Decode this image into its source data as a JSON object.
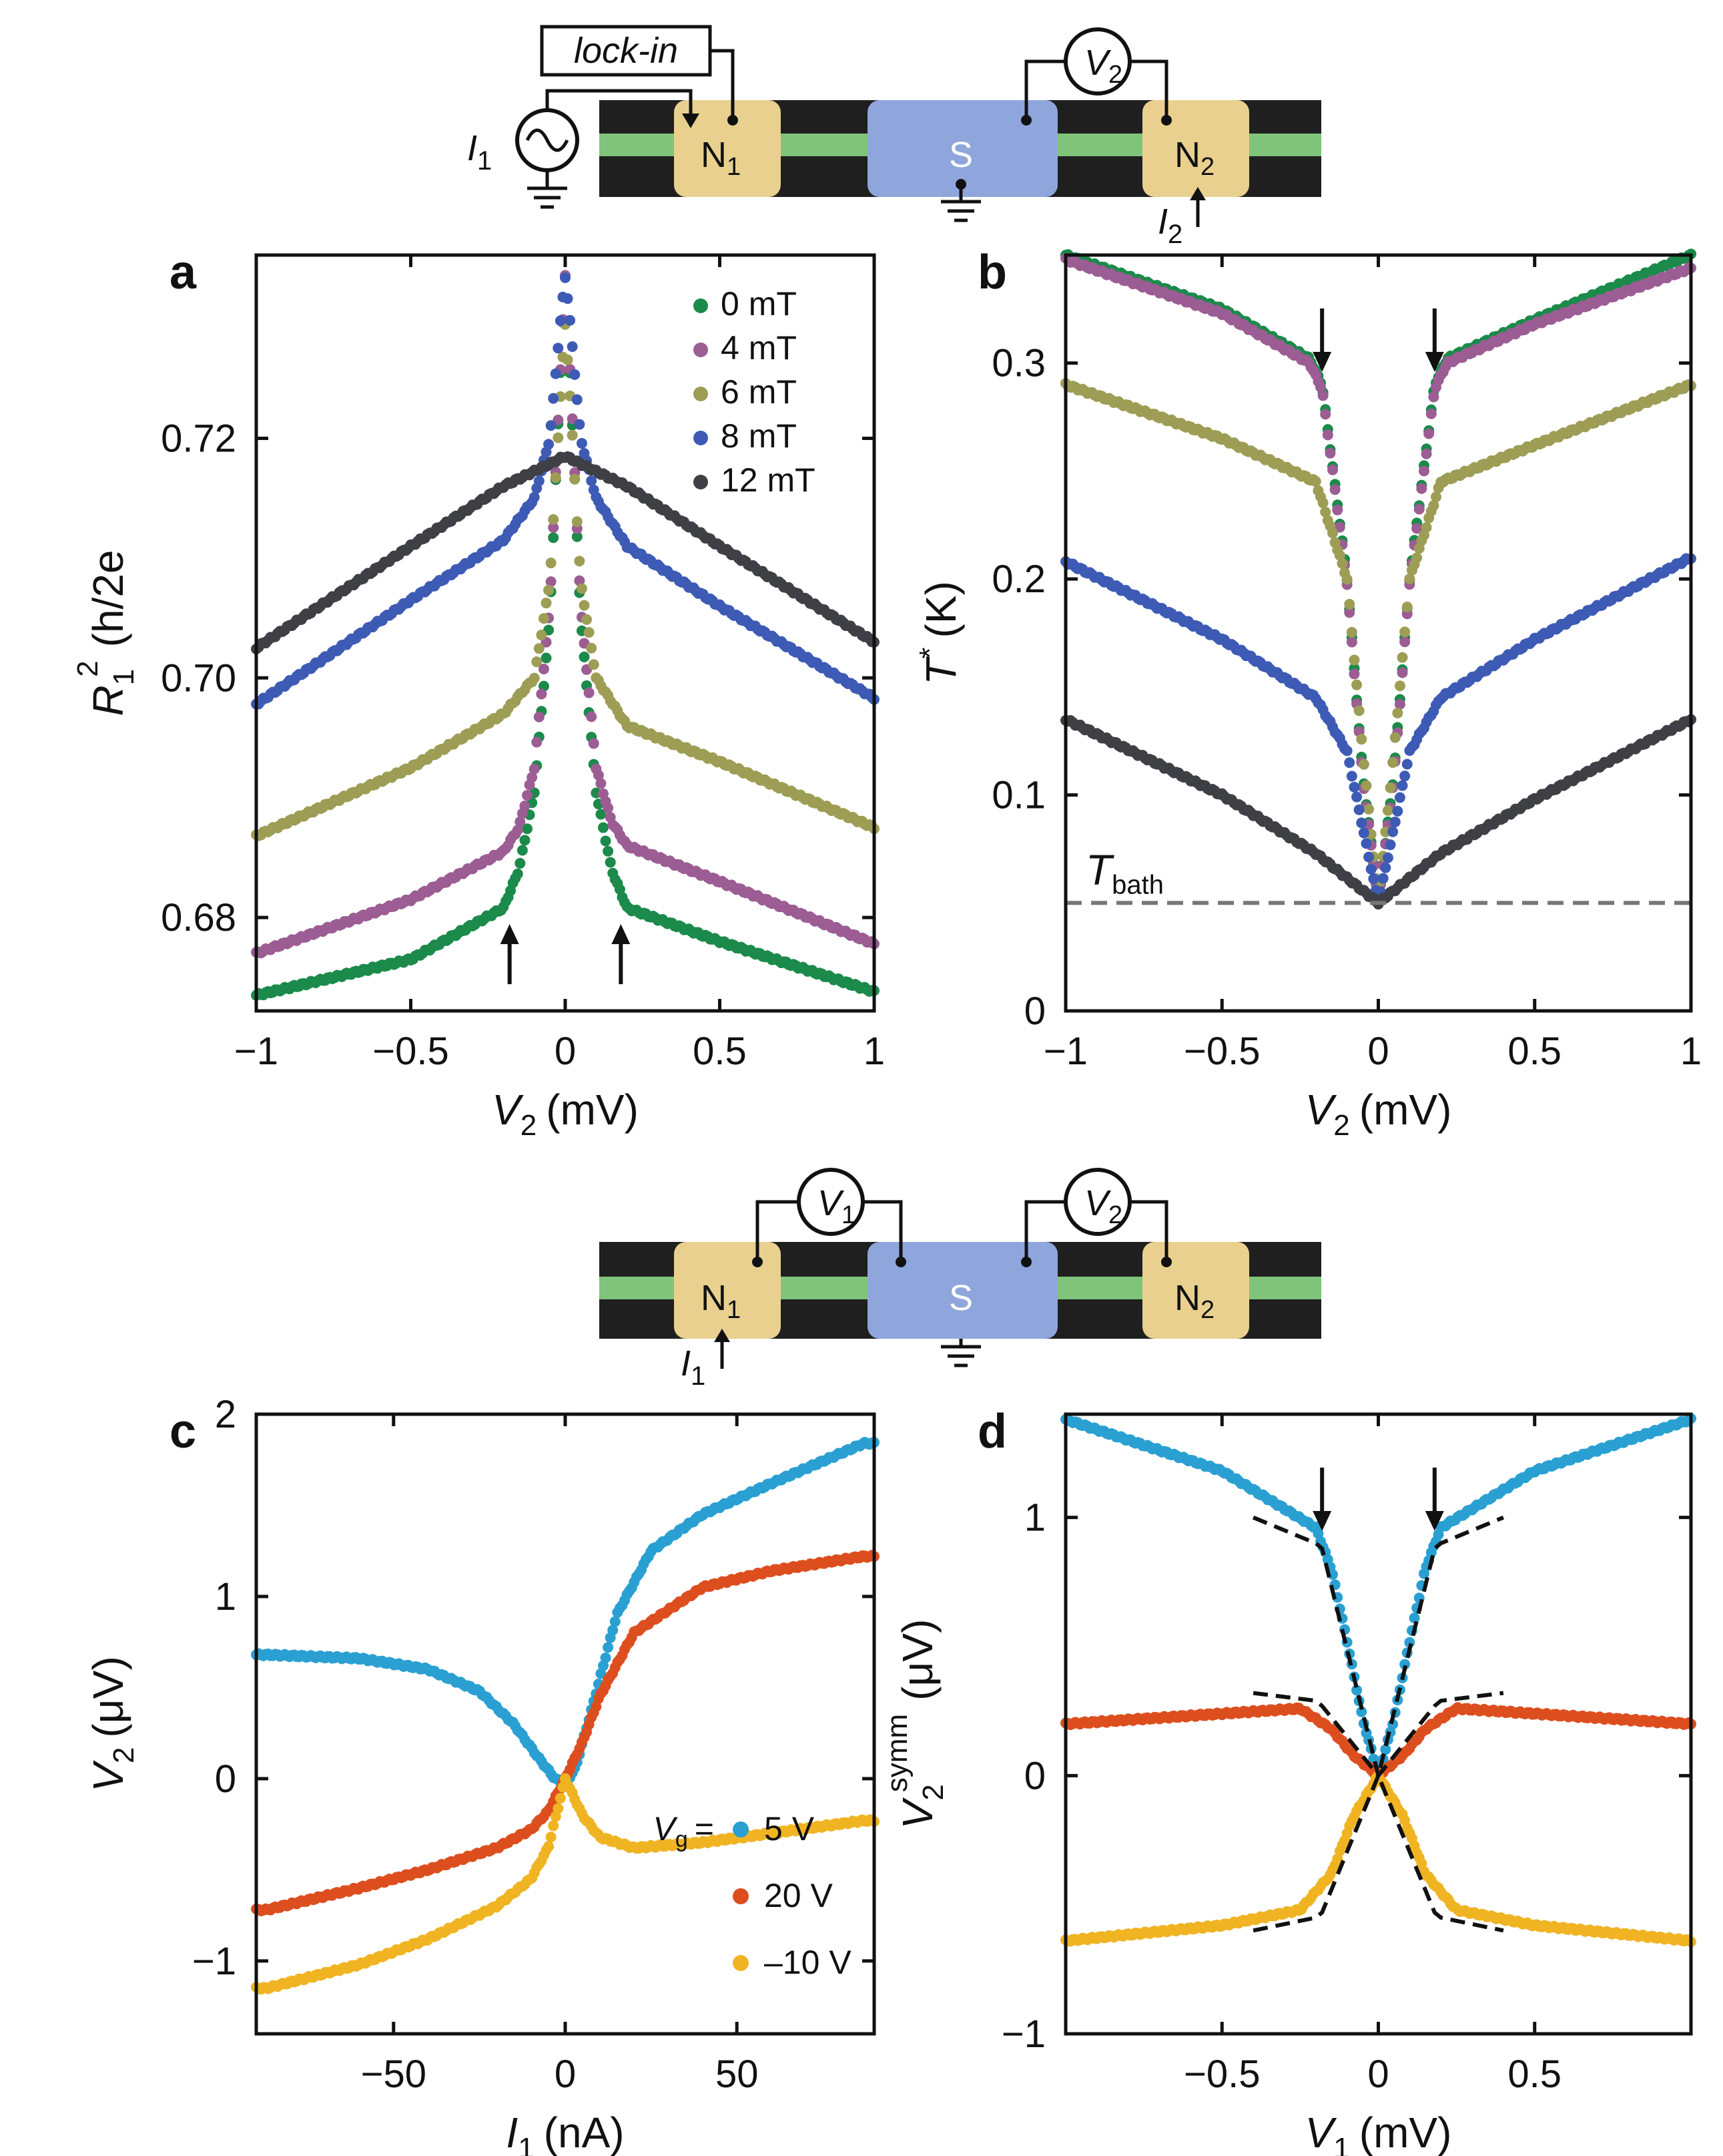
{
  "colors": {
    "green": "#1b8a4a",
    "purple": "#9b5d93",
    "olive": "#9d9d55",
    "blue": "#3d5bb5",
    "gray": "#3f3f46",
    "cyan": "#2aa0d2",
    "orange": "#dd4e1f",
    "yellow": "#f0b423",
    "lead_green": "#7fc47a",
    "contact_gold": "#e9d08f",
    "sc_blue": "#8fa6dc",
    "dark": "#2a2a2a"
  },
  "devices": {
    "top": {
      "instrument": "lock-in",
      "source_I": "I",
      "source_I_sub": "1",
      "meter_V": "V",
      "meter_V_sub": "2",
      "N1": "N",
      "N1_sub": "1",
      "S": "S",
      "N2": "N",
      "N2_sub": "2",
      "I2": "I",
      "I2_sub": "2"
    },
    "bottom": {
      "meter1_V": "V",
      "meter1_V_sub": "1",
      "meter2_V": "V",
      "meter2_V_sub": "2",
      "N1": "N",
      "N1_sub": "1",
      "S": "S",
      "N2": "N",
      "N2_sub": "2",
      "I1": "I",
      "I1_sub": "1"
    }
  },
  "chart_data": [
    {
      "id": "a",
      "panel_label": "a",
      "type": "scatter",
      "xlabel": {
        "sym": "V",
        "sub": "2",
        "unit": "(mV)"
      },
      "ylabel": {
        "sym": "R",
        "sub": "1",
        "unit": "(h/2e",
        "sup": "2",
        "close": ")"
      },
      "xlim": [
        -1,
        1
      ],
      "ylim": [
        0.6722,
        0.7353
      ],
      "xticks": [
        -1,
        -0.5,
        0,
        0.5,
        1
      ],
      "xtick_labels": [
        "−1",
        "−0.5",
        "0",
        "0.5",
        "1"
      ],
      "yticks": [
        0.68,
        0.7,
        0.72
      ],
      "ytick_labels": [
        "0.68",
        "0.70",
        "0.72"
      ],
      "legend": [
        "0 mT",
        "4 mT",
        "6 mT",
        "8 mT",
        "12 mT"
      ],
      "arrows": {
        "direction": "up",
        "x": [
          -0.18,
          0.18
        ]
      },
      "series": [
        {
          "name": "0 mT",
          "color": "green",
          "peak": 0.7335,
          "x": [
            -1,
            -0.5,
            -0.2,
            -0.15,
            -0.1,
            -0.05,
            0,
            0.05,
            0.1,
            0.15,
            0.2,
            0.5,
            1
          ],
          "y": [
            0.6735,
            0.6765,
            0.6808,
            0.684,
            0.6905,
            0.705,
            0.7335,
            0.705,
            0.6905,
            0.684,
            0.6808,
            0.678,
            0.6738
          ]
        },
        {
          "name": "4 mT",
          "color": "purple",
          "peak": 0.7335,
          "x": [
            -1,
            -0.5,
            -0.2,
            -0.15,
            -0.1,
            -0.05,
            0,
            0.05,
            0.1,
            0.15,
            0.2,
            0.5,
            1
          ],
          "y": [
            0.677,
            0.6815,
            0.6855,
            0.6875,
            0.6925,
            0.706,
            0.7335,
            0.706,
            0.6925,
            0.688,
            0.686,
            0.683,
            0.6778
          ]
        },
        {
          "name": "6 mT",
          "color": "olive",
          "peak": 0.7295,
          "x": [
            -1,
            -0.5,
            -0.2,
            -0.1,
            -0.05,
            0,
            0.05,
            0.1,
            0.2,
            0.5,
            1
          ],
          "y": [
            0.6868,
            0.6925,
            0.697,
            0.7,
            0.708,
            0.7295,
            0.708,
            0.7,
            0.696,
            0.693,
            0.6875
          ]
        },
        {
          "name": "8 mT",
          "color": "blue",
          "peak": 0.7335,
          "x": [
            -1,
            -0.5,
            -0.2,
            -0.1,
            -0.05,
            0,
            0.05,
            0.1,
            0.2,
            0.5,
            1
          ],
          "y": [
            0.6978,
            0.7065,
            0.7115,
            0.715,
            0.72,
            0.7335,
            0.72,
            0.715,
            0.711,
            0.706,
            0.6983
          ]
        },
        {
          "name": "12 mT",
          "color": "gray",
          "peak": 0.7185,
          "x": [
            -1,
            -0.5,
            -0.2,
            0,
            0.2,
            0.5,
            1
          ],
          "y": [
            0.7025,
            0.711,
            0.716,
            0.7185,
            0.716,
            0.711,
            0.703
          ]
        }
      ]
    },
    {
      "id": "b",
      "panel_label": "b",
      "type": "scatter",
      "xlabel": {
        "sym": "V",
        "sub": "2",
        "unit": "(mV)"
      },
      "ylabel": {
        "sym": "T",
        "sup": "*",
        "unit": "(K)"
      },
      "xlim": [
        -1,
        1
      ],
      "ylim": [
        0,
        0.35
      ],
      "xticks": [
        -1,
        -0.5,
        0,
        0.5,
        1
      ],
      "xtick_labels": [
        "−1",
        "−0.5",
        "0",
        "0.5",
        "1"
      ],
      "yticks": [
        0,
        0.1,
        0.2,
        0.3
      ],
      "ytick_labels": [
        "0",
        "0.1",
        "0.2",
        "0.3"
      ],
      "reference_line": {
        "y": 0.05,
        "label": "T",
        "label_sub": "bath"
      },
      "arrows": {
        "direction": "down",
        "x": [
          -0.18,
          0.18
        ]
      },
      "series": [
        {
          "name": "0 mT",
          "color": "green",
          "x": [
            -1,
            -0.5,
            -0.22,
            -0.18,
            -0.1,
            -0.05,
            0,
            0.05,
            0.1,
            0.18,
            0.22,
            0.5,
            1
          ],
          "y": [
            0.35,
            0.325,
            0.302,
            0.29,
            0.2,
            0.11,
            0.05,
            0.11,
            0.2,
            0.29,
            0.302,
            0.32,
            0.35
          ]
        },
        {
          "name": "4 mT",
          "color": "purple",
          "x": [
            -1,
            -0.5,
            -0.22,
            -0.18,
            -0.1,
            -0.05,
            0,
            0.05,
            0.1,
            0.18,
            0.22,
            0.5,
            1
          ],
          "y": [
            0.348,
            0.323,
            0.3,
            0.288,
            0.198,
            0.108,
            0.05,
            0.108,
            0.198,
            0.288,
            0.3,
            0.318,
            0.344
          ]
        },
        {
          "name": "6 mT",
          "color": "olive",
          "x": [
            -1,
            -0.5,
            -0.2,
            -0.1,
            -0.05,
            0,
            0.05,
            0.1,
            0.2,
            0.5,
            1
          ],
          "y": [
            0.29,
            0.265,
            0.245,
            0.2,
            0.12,
            0.05,
            0.12,
            0.2,
            0.245,
            0.262,
            0.29
          ]
        },
        {
          "name": "8 mT",
          "color": "blue",
          "x": [
            -1,
            -0.5,
            -0.2,
            -0.1,
            -0.05,
            0,
            0.05,
            0.1,
            0.2,
            0.5,
            1
          ],
          "y": [
            0.208,
            0.172,
            0.145,
            0.12,
            0.085,
            0.05,
            0.085,
            0.12,
            0.145,
            0.172,
            0.21
          ]
        },
        {
          "name": "12 mT",
          "color": "gray",
          "x": [
            -1,
            -0.5,
            -0.2,
            0,
            0.2,
            0.5,
            1
          ],
          "y": [
            0.135,
            0.1,
            0.073,
            0.05,
            0.073,
            0.098,
            0.135
          ]
        }
      ]
    },
    {
      "id": "c",
      "panel_label": "c",
      "type": "scatter",
      "xlabel": {
        "sym": "I",
        "sub": "1",
        "unit": "(nA)"
      },
      "ylabel": {
        "sym": "V",
        "sub": "2",
        "unit": "(μV)"
      },
      "xlim": [
        -90,
        90
      ],
      "ylim": [
        -1.4,
        2
      ],
      "xticks": [
        -50,
        0,
        50
      ],
      "xtick_labels": [
        "−50",
        "0",
        "50"
      ],
      "yticks": [
        -1,
        0,
        1,
        2
      ],
      "ytick_labels": [
        "−1",
        "0",
        "1",
        "2"
      ],
      "legend_title": {
        "sym": "V",
        "sub": "g",
        "eq": "="
      },
      "legend": [
        "5 V",
        "20 V",
        "–10 V"
      ],
      "series": [
        {
          "name": "5 V",
          "color": "cyan",
          "x": [
            -87,
            -60,
            -40,
            -25,
            -15,
            -8,
            -3,
            0,
            3,
            8,
            15,
            25,
            40,
            60,
            87
          ],
          "y": [
            0.68,
            0.66,
            0.6,
            0.48,
            0.3,
            0.12,
            0.0,
            -0.03,
            0.06,
            0.4,
            0.9,
            1.25,
            1.45,
            1.62,
            1.84
          ]
        },
        {
          "name": "20 V",
          "color": "orange",
          "x": [
            -87,
            -60,
            -40,
            -20,
            -10,
            -5,
            0,
            5,
            10,
            20,
            40,
            60,
            87
          ],
          "y": [
            -0.72,
            -0.6,
            -0.5,
            -0.38,
            -0.28,
            -0.18,
            0.0,
            0.2,
            0.45,
            0.8,
            1.05,
            1.14,
            1.22
          ]
        },
        {
          "name": "–10 V",
          "color": "yellow",
          "x": [
            -87,
            -60,
            -40,
            -20,
            -10,
            -5,
            0,
            5,
            10,
            20,
            40,
            60,
            87
          ],
          "y": [
            -1.15,
            -1.02,
            -0.88,
            -0.7,
            -0.55,
            -0.38,
            0.0,
            -0.2,
            -0.32,
            -0.38,
            -0.35,
            -0.3,
            -0.23
          ]
        }
      ]
    },
    {
      "id": "d",
      "panel_label": "d",
      "type": "scatter",
      "xlabel": {
        "sym": "V",
        "sub": "1",
        "unit": "(mV)"
      },
      "ylabel": {
        "sym": "V",
        "sub": "2",
        "sup": "symm",
        "unit": "(μV)"
      },
      "xlim": [
        -1,
        1
      ],
      "ylim": [
        -1,
        1.4
      ],
      "xticks": [
        -0.5,
        0,
        0.5
      ],
      "xtick_labels": [
        "−0.5",
        "0",
        "0.5"
      ],
      "yticks": [
        -1,
        0,
        1
      ],
      "ytick_labels": [
        "−1",
        "0",
        "1"
      ],
      "arrows": {
        "direction": "down",
        "x": [
          -0.18,
          0.18
        ]
      },
      "series": [
        {
          "name": "5 V",
          "color": "cyan",
          "x": [
            -1,
            -0.5,
            -0.2,
            -0.15,
            -0.1,
            -0.05,
            0,
            0.05,
            0.1,
            0.15,
            0.2,
            0.5,
            1
          ],
          "y": [
            1.38,
            1.18,
            0.96,
            0.8,
            0.52,
            0.22,
            0.0,
            0.22,
            0.52,
            0.8,
            0.96,
            1.18,
            1.38
          ]
        },
        {
          "name": "20 V",
          "color": "orange",
          "x": [
            -1,
            -0.5,
            -0.25,
            -0.15,
            -0.08,
            0,
            0.08,
            0.15,
            0.25,
            0.5,
            1
          ],
          "y": [
            0.2,
            0.24,
            0.26,
            0.18,
            0.08,
            0.0,
            0.08,
            0.18,
            0.26,
            0.24,
            0.2
          ]
        },
        {
          "name": "–10 V",
          "color": "yellow",
          "x": [
            -1,
            -0.5,
            -0.25,
            -0.15,
            -0.08,
            0,
            0.08,
            0.15,
            0.25,
            0.5,
            1
          ],
          "y": [
            -0.64,
            -0.58,
            -0.52,
            -0.38,
            -0.16,
            0.0,
            -0.16,
            -0.38,
            -0.52,
            -0.58,
            -0.64
          ]
        }
      ],
      "fit_lines": [
        {
          "color": "dark",
          "x": [
            -0.4,
            -0.2,
            -0.18,
            0,
            0.18,
            0.2,
            0.4
          ],
          "y": [
            1.0,
            0.9,
            0.88,
            0.0,
            0.88,
            0.9,
            1.0
          ]
        },
        {
          "color": "dark",
          "x": [
            -0.4,
            -0.2,
            -0.18,
            0,
            0.18,
            0.2,
            0.4
          ],
          "y": [
            0.32,
            0.29,
            0.27,
            0.0,
            0.27,
            0.29,
            0.32
          ]
        },
        {
          "color": "dark",
          "x": [
            -0.4,
            -0.2,
            -0.18,
            0,
            0.18,
            0.2,
            0.4
          ],
          "y": [
            -0.6,
            -0.55,
            -0.53,
            0.0,
            -0.53,
            -0.55,
            -0.6
          ]
        }
      ]
    }
  ]
}
